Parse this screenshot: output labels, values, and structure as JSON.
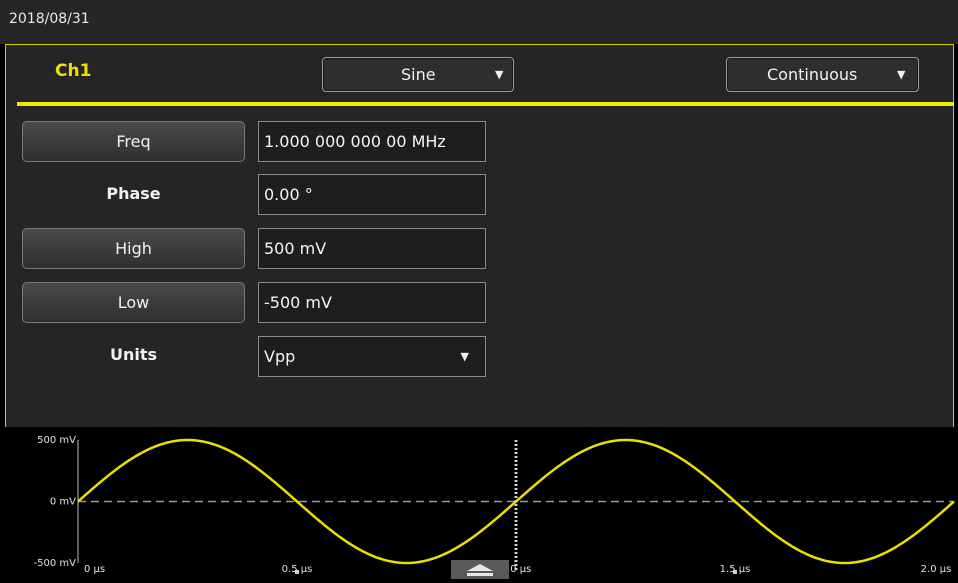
{
  "status_bar": {
    "date": "2018/08/31"
  },
  "channel": {
    "label": "Ch1",
    "waveform_label": "Sine",
    "run_mode_label": "Continuous"
  },
  "params": {
    "freq": {
      "label": "Freq",
      "value": "1.000 000 000 00 MHz"
    },
    "phase": {
      "label": "Phase",
      "value": "0.00 °"
    },
    "high": {
      "label": "High",
      "value": "500 mV"
    },
    "low": {
      "label": "Low",
      "value": "-500 mV"
    },
    "units": {
      "label": "Units",
      "value": "Vpp"
    }
  },
  "colors": {
    "accent": "#f0e800",
    "trace": "#e8e000",
    "panel": "#252525",
    "background": "#000000"
  },
  "icons": {
    "dropdown": "triangle-down-icon",
    "handle": "eject-arrow-icon"
  },
  "chart_data": {
    "type": "line",
    "series": [
      {
        "function": "sine",
        "frequency_mhz": 1,
        "amplitude_mv": 500,
        "phase_deg": 0
      }
    ],
    "xlim": [
      0,
      2.0
    ],
    "ylim": [
      -500,
      500
    ],
    "x_ticks": [
      "0 µs",
      "0.5 µs",
      "1.0 µs",
      "1.5 µs",
      "2.0 µs"
    ],
    "y_ticks": [
      "500 mV",
      "0 mV",
      "-500 mV"
    ],
    "zero_line": "dashed",
    "center_marker": "dotted"
  }
}
